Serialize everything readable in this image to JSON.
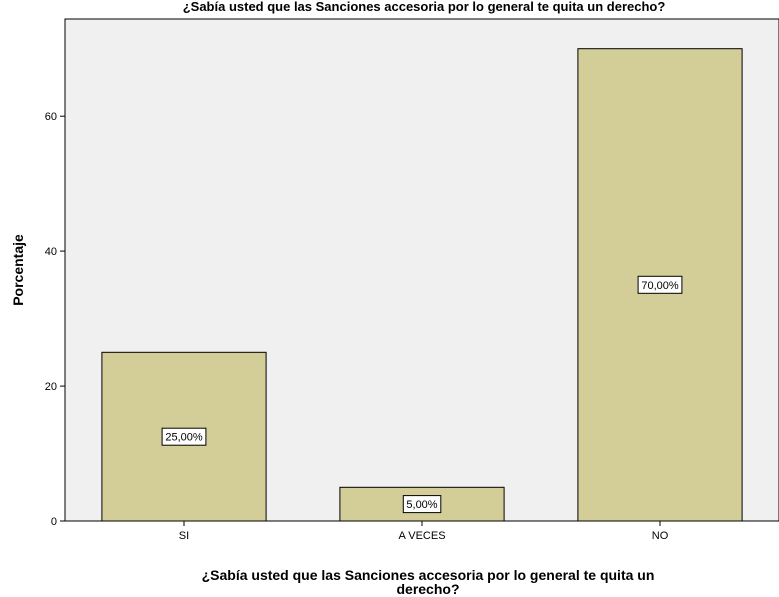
{
  "chart_data": {
    "type": "bar",
    "title": "¿Sabía usted que las Sanciones accesoria por lo general te quita un derecho?",
    "xlabel_lines": [
      "¿Sabía usted que las Sanciones accesoria por lo general te quita un",
      "derecho?"
    ],
    "ylabel": "Porcentaje",
    "categories": [
      "SI",
      "A VECES",
      "NO"
    ],
    "values": [
      25,
      5,
      70
    ],
    "data_labels": [
      "25,00%",
      "5,00%",
      "70,00%"
    ],
    "y_ticks": [
      0,
      20,
      40,
      60
    ],
    "ylim": [
      0,
      74.4
    ],
    "grid": false,
    "colors": {
      "bar_fill": "#d3ce97",
      "bar_stroke": "#000000",
      "plot_background": "#f0f0f0"
    }
  }
}
